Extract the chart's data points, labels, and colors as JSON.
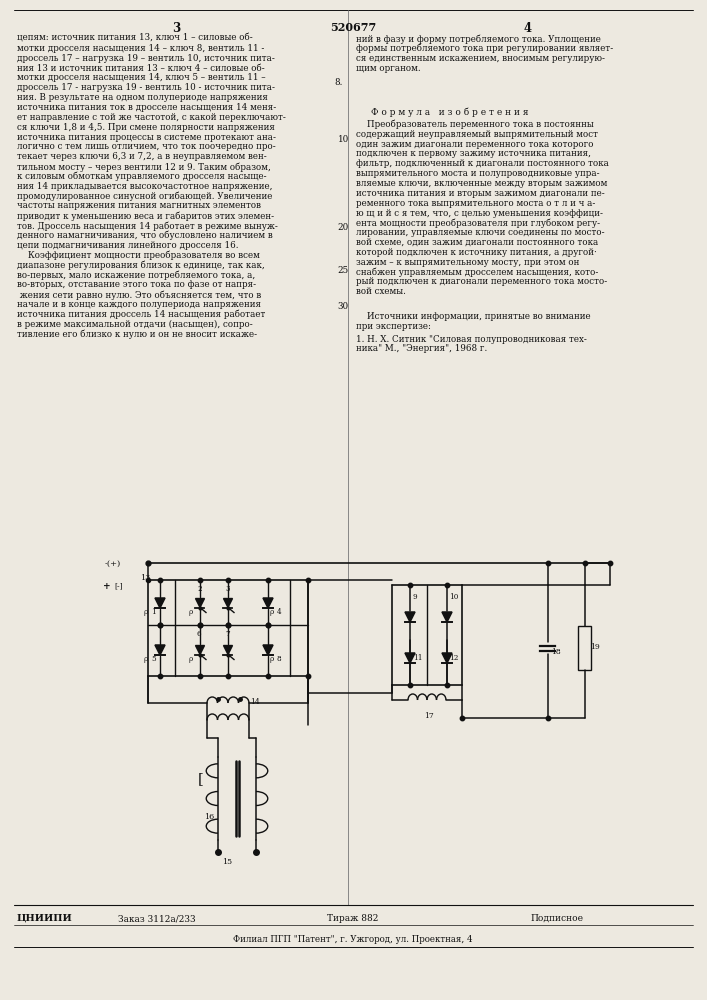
{
  "page_width": 7.07,
  "page_height": 10.0,
  "bg_color": "#ede9e0",
  "text_color": "#111111",
  "footer_org": "ЦНИИПИ",
  "footer_order": "Заказ 3112а/233",
  "footer_tirazh": "Тираж 882",
  "footer_podpis": "Подписное",
  "footer_filial": "Филиал ПГП \"Патент\", г. Ужгород, ул. Проектная, 4"
}
